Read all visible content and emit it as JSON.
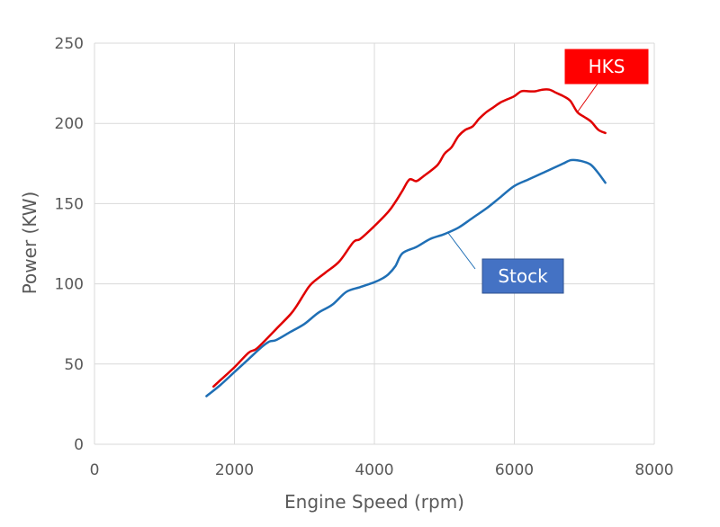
{
  "chart_data": {
    "type": "line",
    "xlabel": "Engine Speed (rpm)",
    "ylabel": "Power (KW)",
    "xlim": [
      0,
      8000
    ],
    "ylim": [
      0,
      250
    ],
    "xticks": [
      0,
      2000,
      4000,
      6000,
      8000
    ],
    "yticks": [
      0,
      50,
      100,
      150,
      200,
      250
    ],
    "xtick_labels": [
      "0",
      "2000",
      "4000",
      "6000",
      "8000"
    ],
    "ytick_labels": [
      "0",
      "50",
      "100",
      "150",
      "200",
      "250"
    ],
    "grid": true,
    "series": [
      {
        "name": "HKS",
        "color": "#e00000",
        "x": [
          1700,
          1800,
          2000,
          2200,
          2300,
          2400,
          2600,
          2800,
          2900,
          3000,
          3100,
          3300,
          3500,
          3700,
          3800,
          4000,
          4200,
          4300,
          4400,
          4500,
          4600,
          4700,
          4900,
          5000,
          5100,
          5200,
          5300,
          5400,
          5500,
          5600,
          5700,
          5800,
          5900,
          6000,
          6100,
          6200,
          6300,
          6400,
          6500,
          6600,
          6700,
          6800,
          6900,
          7000,
          7100,
          7200,
          7300
        ],
        "y": [
          36,
          40,
          48,
          57,
          59,
          63,
          72,
          81,
          87,
          94,
          100,
          107,
          114,
          126,
          128,
          136,
          145,
          151,
          158,
          165,
          164,
          167,
          174,
          181,
          185,
          192,
          196,
          198,
          203,
          207,
          210,
          213,
          215,
          217,
          220,
          220,
          220,
          221,
          221,
          219,
          217,
          214,
          207,
          204,
          201,
          196,
          194
        ]
      },
      {
        "name": "Stock",
        "color": "#1f6fb5",
        "x": [
          1600,
          1800,
          2000,
          2200,
          2400,
          2500,
          2600,
          2800,
          3000,
          3200,
          3400,
          3600,
          3800,
          4000,
          4100,
          4200,
          4300,
          4400,
          4600,
          4800,
          5000,
          5200,
          5400,
          5600,
          5800,
          6000,
          6200,
          6400,
          6600,
          6700,
          6800,
          6900,
          7000,
          7100,
          7200,
          7300
        ],
        "y": [
          30,
          37,
          45,
          53,
          61,
          64,
          65,
          70,
          75,
          82,
          87,
          95,
          98,
          101,
          103,
          106,
          111,
          119,
          123,
          128,
          131,
          135,
          141,
          147,
          154,
          161,
          165,
          169,
          173,
          175,
          177,
          177,
          176,
          174,
          169,
          163
        ]
      }
    ],
    "annotations": [
      {
        "text": "HKS",
        "series": "HKS",
        "bg": "#ff0000"
      },
      {
        "text": "Stock",
        "series": "Stock",
        "bg": "#4472c4"
      }
    ]
  }
}
